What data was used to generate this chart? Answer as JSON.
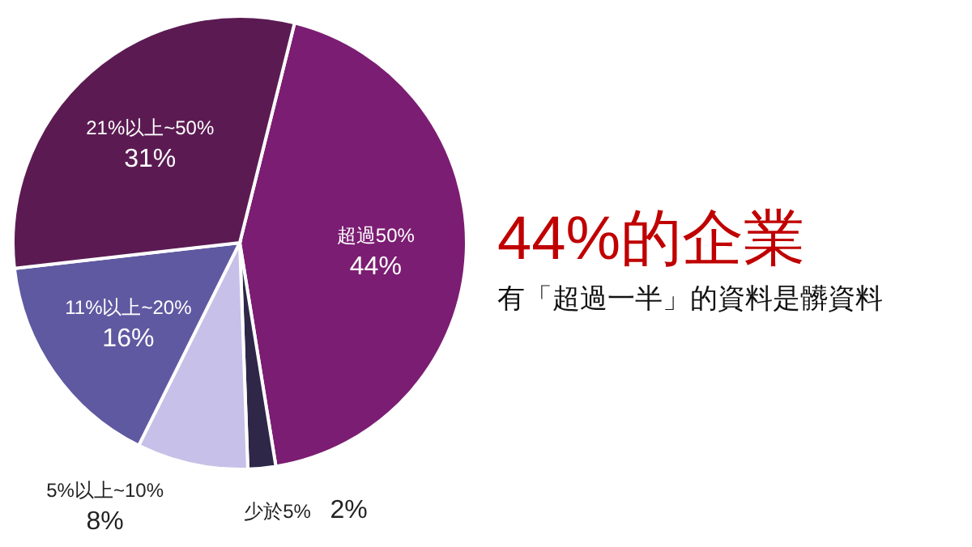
{
  "chart_data": {
    "type": "pie",
    "title": "44%的企業",
    "subtitle": "有「超過一半」的資料是髒資料",
    "categories": [
      "超過50%",
      "少於5%",
      "5%以上~10%",
      "11%以上~20%",
      "21%以上~50%"
    ],
    "values": [
      44,
      2,
      8,
      16,
      31
    ],
    "colors": [
      "#7b1d72",
      "#2e2747",
      "#c7c0e8",
      "#5f59a1",
      "#5b1b52"
    ],
    "value_labels": [
      "44%",
      "2%",
      "8%",
      "16%",
      "31%"
    ]
  }
}
